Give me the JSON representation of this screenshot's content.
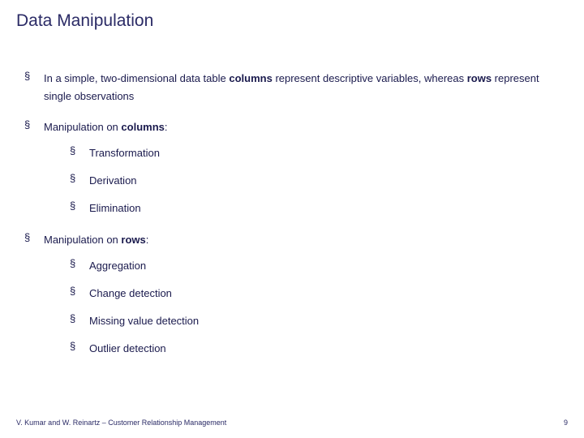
{
  "colors": {
    "text": "#1a1a4d",
    "title": "#2b2b66",
    "background": "#ffffff"
  },
  "title": "Data Manipulation",
  "bullets": {
    "b1_pre": "In a simple, two-dimensional data table ",
    "b1_bold1": "columns",
    "b1_mid": " represent descriptive variables, whereas ",
    "b1_bold2": "rows",
    "b1_post": " represent single observations",
    "b2_pre": "Manipulation on ",
    "b2_bold": "columns",
    "b2_post": ":",
    "b2_items": {
      "i0": "Transformation",
      "i1": "Derivation",
      "i2": "Elimination"
    },
    "b3_pre": "Manipulation on ",
    "b3_bold": "rows",
    "b3_post": ":",
    "b3_items": {
      "i0": "Aggregation",
      "i1": "Change detection",
      "i2": "Missing value detection",
      "i3": "Outlier detection"
    }
  },
  "footer": {
    "credit": "V. Kumar and W. Reinartz – Customer Relationship Management",
    "page": "9"
  }
}
